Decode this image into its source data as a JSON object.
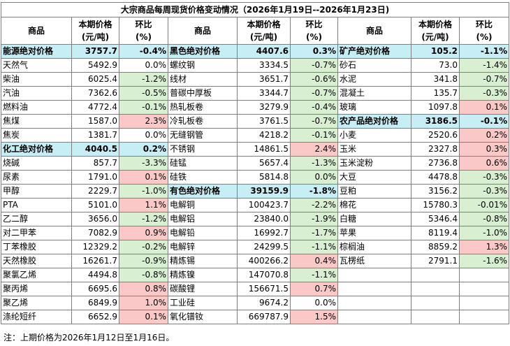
{
  "title": "大宗商品每周现货价格变动情况（2026年1月19日--2026年1月23日)",
  "headers": {
    "name": "商品",
    "price_line1": "本期价格",
    "price_line2": "(元/吨)",
    "change_line1": "环比",
    "change_line2": "(%)"
  },
  "col1": [
    {
      "name": "能源绝对价格",
      "price": "3757.7",
      "change": "-0.4%",
      "agg": true,
      "dir": "down"
    },
    {
      "name": "天然气",
      "price": "5492.9",
      "change": "0.0%",
      "dir": "flat"
    },
    {
      "name": "柴油",
      "price": "6025.4",
      "change": "-1.2%",
      "dir": "down"
    },
    {
      "name": "汽油",
      "price": "7362.6",
      "change": "-0.5%",
      "dir": "down"
    },
    {
      "name": "燃料油",
      "price": "4772.4",
      "change": "-0.1%",
      "dir": "down"
    },
    {
      "name": "焦煤",
      "price": "1587.0",
      "change": "2.3%",
      "dir": "up"
    },
    {
      "name": "焦炭",
      "price": "1381.7",
      "change": "0.0%",
      "dir": "flat"
    },
    {
      "name": "化工绝对价格",
      "price": "4040.5",
      "change": "0.2%",
      "agg": true,
      "dir": "up"
    },
    {
      "name": "烧碱",
      "price": "857.7",
      "change": "-3.3%",
      "dir": "down"
    },
    {
      "name": "尿素",
      "price": "1791.0",
      "change": "0.1%",
      "dir": "up"
    },
    {
      "name": "甲醇",
      "price": "2229.7",
      "change": "-1.0%",
      "dir": "down"
    },
    {
      "name": "PTA",
      "price": "5101.0",
      "change": "1.1%",
      "dir": "up"
    },
    {
      "name": "乙二醇",
      "price": "3656.0",
      "change": "-1.2%",
      "dir": "down"
    },
    {
      "name": "对二甲苯",
      "price": "7082.9",
      "change": "0.9%",
      "dir": "up"
    },
    {
      "name": "丁苯橡胶",
      "price": "12329.2",
      "change": "-0.2%",
      "dir": "down"
    },
    {
      "name": "天然橡胶",
      "price": "16261.7",
      "change": "-0.9%",
      "dir": "down"
    },
    {
      "name": "聚氯乙烯",
      "price": "4494.8",
      "change": "-0.8%",
      "dir": "down"
    },
    {
      "name": "聚丙烯",
      "price": "6695.6",
      "change": "0.8%",
      "dir": "up"
    },
    {
      "name": "聚乙烯",
      "price": "6849.9",
      "change": "1.0%",
      "dir": "up"
    },
    {
      "name": "涤纶短纤",
      "price": "6652.9",
      "change": "0.1%",
      "dir": "up"
    }
  ],
  "col2": [
    {
      "name": "黑色绝对价格",
      "price": "4407.6",
      "change": "0.3%",
      "agg": true,
      "dir": "up"
    },
    {
      "name": "螺纹钢",
      "price": "3334.5",
      "change": "-0.7%",
      "dir": "down"
    },
    {
      "name": "线材",
      "price": "3651.7",
      "change": "-0.6%",
      "dir": "down"
    },
    {
      "name": "普碳中厚板",
      "price": "3344.7",
      "change": "-0.7%",
      "dir": "down"
    },
    {
      "name": "热轧板卷",
      "price": "3279.9",
      "change": "-0.4%",
      "dir": "down"
    },
    {
      "name": "冷轧板卷",
      "price": "3761.5",
      "change": "-0.7%",
      "dir": "down"
    },
    {
      "name": "无缝钢管",
      "price": "4218.2",
      "change": "-0.1%",
      "dir": "down"
    },
    {
      "name": "不锈钢",
      "price": "14861.5",
      "change": "2.4%",
      "dir": "up"
    },
    {
      "name": "硅锰",
      "price": "5657.4",
      "change": "-1.3%",
      "dir": "down"
    },
    {
      "name": "硅铁",
      "price": "5814.8",
      "change": "0.0%",
      "dir": "down"
    },
    {
      "name": "有色绝对价格",
      "price": "39159.9",
      "change": "-1.8%",
      "agg": true,
      "dir": "down"
    },
    {
      "name": "电解铜",
      "price": "100423.7",
      "change": "-2.2%",
      "dir": "down"
    },
    {
      "name": "电解铝",
      "price": "23840.0",
      "change": "-1.9%",
      "dir": "down"
    },
    {
      "name": "电解铅",
      "price": "16992.7",
      "change": "-1.7%",
      "dir": "down"
    },
    {
      "name": "电解锌",
      "price": "24299.5",
      "change": "-1.1%",
      "dir": "down"
    },
    {
      "name": "精炼锡",
      "price": "400266.2",
      "change": "0.4%",
      "dir": "up"
    },
    {
      "name": "精炼镍",
      "price": "147070.8",
      "change": "-1.1%",
      "dir": "down"
    },
    {
      "name": "碳酸锂",
      "price": "156671.5",
      "change": "0.7%",
      "dir": "up"
    },
    {
      "name": "工业硅",
      "price": "9674.2",
      "change": "0.0%",
      "dir": "flat"
    },
    {
      "name": "氧化镨钕",
      "price": "669787.9",
      "change": "1.5%",
      "dir": "up"
    }
  ],
  "col3": [
    {
      "name": "矿产绝对价格",
      "price": "105.2",
      "change": "-1.1%",
      "agg": true,
      "dir": "down"
    },
    {
      "name": "砂石",
      "price": "73.0",
      "change": "-1.4%",
      "dir": "down"
    },
    {
      "name": "水泥",
      "price": "341.8",
      "change": "-0.7%",
      "dir": "down"
    },
    {
      "name": "混凝土",
      "price": "135.7",
      "change": "-0.3%",
      "dir": "down"
    },
    {
      "name": "玻璃",
      "price": "1097.8",
      "change": "0.1%",
      "dir": "up"
    },
    {
      "name": "农产品绝对价格",
      "price": "3186.5",
      "change": "-0.1%",
      "agg": true,
      "dir": "down"
    },
    {
      "name": "小麦",
      "price": "2520.6",
      "change": "0.2%",
      "dir": "up"
    },
    {
      "name": "玉米",
      "price": "2327.8",
      "change": "0.3%",
      "dir": "up"
    },
    {
      "name": "玉米淀粉",
      "price": "2736.8",
      "change": "0.6%",
      "dir": "up"
    },
    {
      "name": "大豆",
      "price": "4478.8",
      "change": "-0.3%",
      "dir": "down"
    },
    {
      "name": "豆粕",
      "price": "3156.2",
      "change": "-0.3%",
      "dir": "down"
    },
    {
      "name": "棉花",
      "price": "15780.3",
      "change": "-0.01%",
      "dir": "down"
    },
    {
      "name": "白糖",
      "price": "5346.4",
      "change": "-0.8%",
      "dir": "down"
    },
    {
      "name": "苹果",
      "price": "8119.4",
      "change": "-1.0%",
      "dir": "down"
    },
    {
      "name": "棕榈油",
      "price": "8859.2",
      "change": "1.3%",
      "dir": "up"
    },
    {
      "name": "瓦楞纸",
      "price": "2791.1",
      "change": "-1.6%",
      "dir": "down"
    }
  ],
  "footnote": "注：上期价格为2026年1月12日至1月16日。"
}
